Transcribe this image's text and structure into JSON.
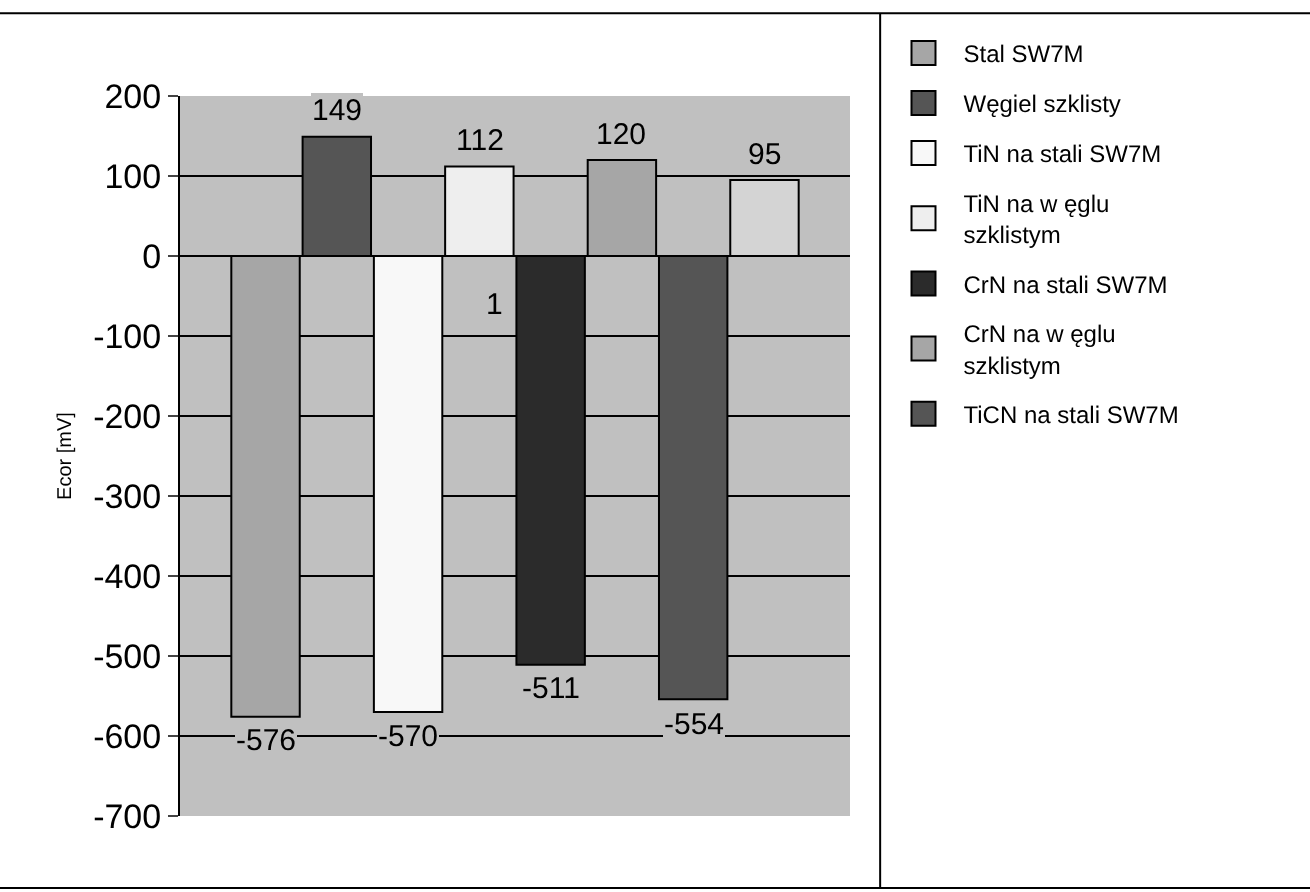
{
  "chart_data": {
    "type": "bar",
    "ylabel": "Ecor [mV]",
    "categories": [
      null,
      null,
      null,
      null,
      null,
      null,
      null,
      null
    ],
    "series": [
      {
        "name": "Stal SW7M",
        "color": "#a6a6a6",
        "values": [
          -576,
          null,
          null,
          null,
          null,
          null,
          null,
          null
        ]
      },
      {
        "name": "Węgiel szklisty",
        "color": "#555555",
        "values": [
          null,
          149,
          null,
          null,
          null,
          null,
          null,
          null
        ]
      },
      {
        "name": "TiN na stali SW7M",
        "color": "#f8f8f8",
        "values": [
          null,
          null,
          -570,
          null,
          null,
          null,
          null,
          null
        ]
      },
      {
        "name": "TiN na w ęglu\nszklistym",
        "color": "#eeeeee",
        "values": [
          null,
          null,
          null,
          112,
          null,
          null,
          null,
          null
        ]
      },
      {
        "name": "CrN na stali SW7M",
        "color": "#2b2b2b",
        "values": [
          null,
          null,
          null,
          null,
          -511,
          null,
          null,
          null
        ]
      },
      {
        "name": "CrN na w ęglu\nszklistym",
        "color": "#a6a6a6",
        "values": [
          null,
          null,
          null,
          null,
          null,
          120,
          null,
          null
        ]
      },
      {
        "name": "TiCN na stali SW7M",
        "color": "#555555",
        "values": [
          null,
          null,
          null,
          null,
          null,
          null,
          -554,
          null
        ]
      },
      {
        "color": "#d4d4d4",
        "values": [
          null,
          null,
          null,
          null,
          null,
          null,
          null,
          95
        ]
      }
    ],
    "ylim": [
      -700,
      200
    ],
    "yticks": [
      -700,
      -600,
      -500,
      -400,
      -300,
      -200,
      -100,
      0,
      100,
      200
    ],
    "grid": "y",
    "legend": "right",
    "data_labels": true,
    "annotations": [
      "1"
    ]
  }
}
